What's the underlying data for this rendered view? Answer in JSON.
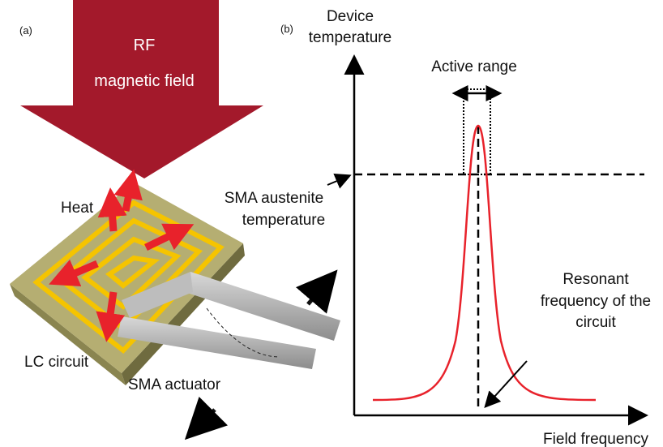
{
  "panel_a": {
    "label": "(a)",
    "field_label": [
      "RF",
      "magnetic field"
    ],
    "heat": "Heat",
    "lc_circuit": "LC circuit",
    "sma_actuator": "SMA actuator"
  },
  "panel_b": {
    "label": "(b)",
    "y_axis_label": [
      "Device",
      "temperature"
    ],
    "x_axis_label": "Field frequency",
    "active_range": "Active range",
    "austenite_label": [
      "SMA austenite",
      "temperature"
    ],
    "resonant_label": [
      "Resonant",
      "frequency of the",
      "circuit"
    ]
  }
}
